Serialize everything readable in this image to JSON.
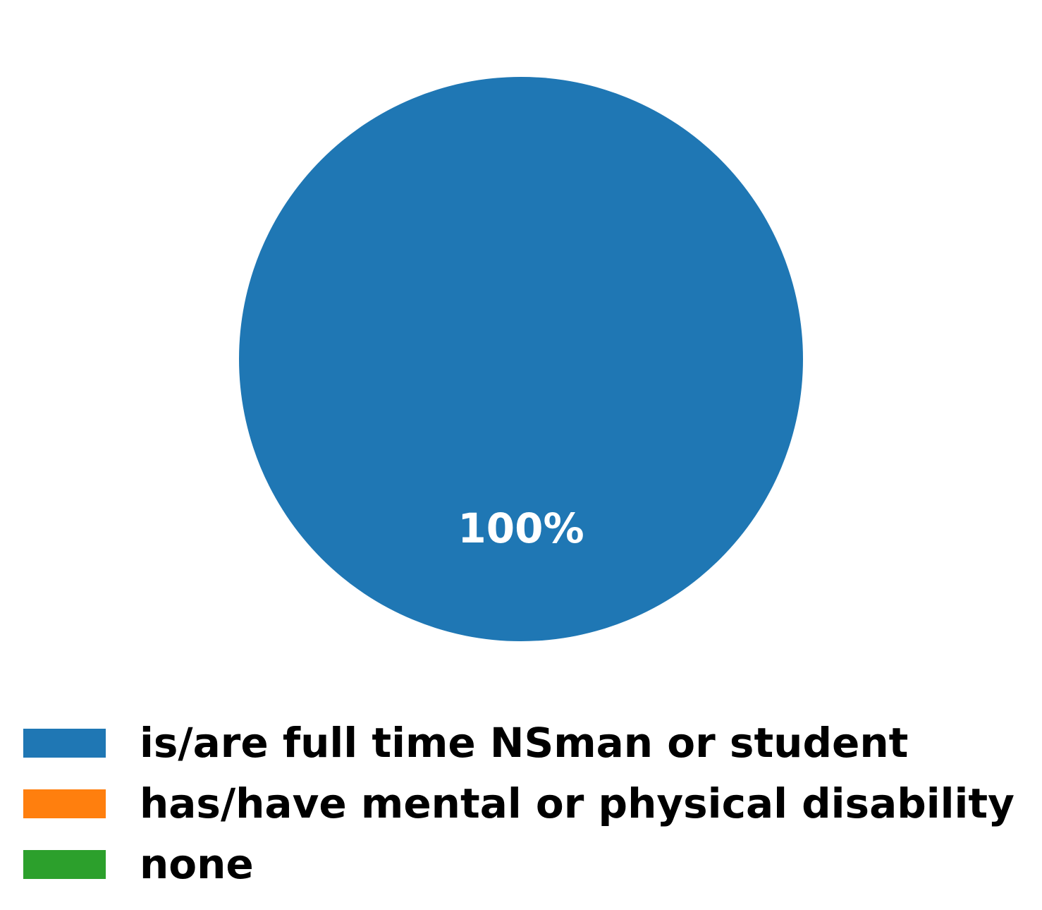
{
  "chart_data": {
    "type": "pie",
    "title": "",
    "slices": [
      {
        "label": "is/are full time NSman or student",
        "value": 100,
        "display": "100%",
        "color": "#1f77b4"
      },
      {
        "label": "has/have mental or physical disability",
        "value": 0,
        "display": "",
        "color": "#ff7f0e"
      },
      {
        "label": "none",
        "value": 0,
        "display": "",
        "color": "#2ca02c"
      }
    ],
    "legend": {
      "placement": "bottom-left",
      "entries": [
        {
          "label": "is/are full time NSman or student",
          "color": "#1f77b4"
        },
        {
          "label": "has/have mental or physical disability",
          "color": "#ff7f0e"
        },
        {
          "label": "none",
          "color": "#2ca02c"
        }
      ]
    }
  }
}
